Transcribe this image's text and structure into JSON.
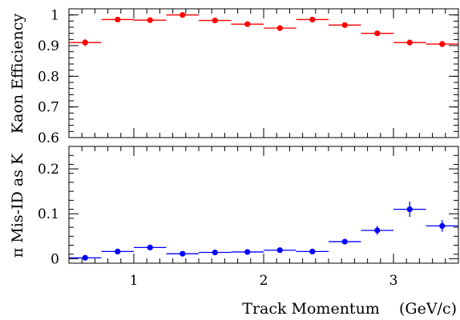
{
  "chart_data": [
    {
      "type": "scatter",
      "name": "kaon-efficiency",
      "ylabel": "Kaon Efficiency",
      "xlim": [
        0.5,
        3.5
      ],
      "ylim": [
        0.6,
        1.02
      ],
      "yticks": [
        0.6,
        0.7,
        0.8,
        0.9,
        1.0
      ],
      "ytick_labels": [
        "0.6",
        "0.7",
        "0.8",
        "0.9",
        "1"
      ],
      "grid": false,
      "color": "#ff0000",
      "x": [
        0.625,
        0.875,
        1.125,
        1.375,
        1.625,
        1.875,
        2.125,
        2.375,
        2.625,
        2.875,
        3.125,
        3.375
      ],
      "x_err": 0.125,
      "y": [
        0.91,
        0.985,
        0.983,
        1.0,
        0.982,
        0.97,
        0.957,
        0.985,
        0.967,
        0.94,
        0.91,
        0.905
      ],
      "y_err": [
        0.012,
        0.006,
        0.006,
        0.005,
        0.006,
        0.006,
        0.007,
        0.006,
        0.007,
        0.008,
        0.01,
        0.01
      ]
    },
    {
      "type": "scatter",
      "name": "pion-misid",
      "ylabel": "π Mis-ID as K",
      "xlabel": "Track Momentum    (GeV/c)",
      "xlim": [
        0.5,
        3.5
      ],
      "ylim": [
        -0.01,
        0.25
      ],
      "yticks": [
        0.0,
        0.1,
        0.2
      ],
      "ytick_labels": [
        "0",
        "0.1",
        "0.2"
      ],
      "xticks": [
        1,
        2,
        3
      ],
      "xtick_labels": [
        "1",
        "2",
        "3"
      ],
      "grid": false,
      "color": "#0000ff",
      "x": [
        0.625,
        0.875,
        1.125,
        1.375,
        1.625,
        1.875,
        2.125,
        2.375,
        2.625,
        2.875,
        3.125,
        3.375
      ],
      "x_err": 0.125,
      "y": [
        0.002,
        0.016,
        0.025,
        0.011,
        0.014,
        0.015,
        0.019,
        0.016,
        0.038,
        0.063,
        0.11,
        0.073
      ],
      "y_err": [
        0.003,
        0.003,
        0.004,
        0.003,
        0.003,
        0.003,
        0.004,
        0.003,
        0.006,
        0.01,
        0.017,
        0.013
      ]
    }
  ]
}
